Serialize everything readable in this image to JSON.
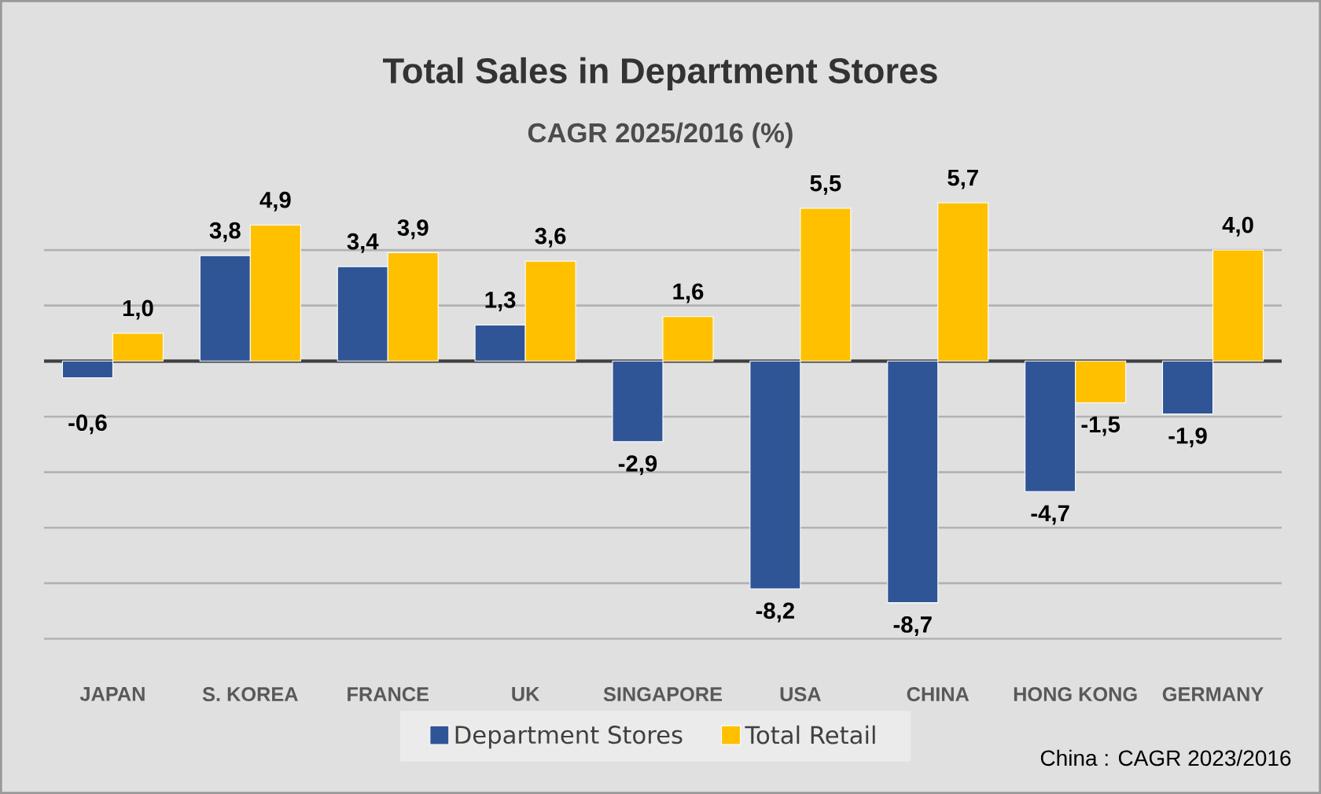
{
  "chart_data": {
    "type": "bar",
    "title": "Total Sales in Department Stores",
    "subtitle": "CAGR 2025/2016 (%)",
    "categories": [
      "JAPAN",
      "S. KOREA",
      "FRANCE",
      "UK",
      "SINGAPORE",
      "USA",
      "CHINA",
      "HONG KONG",
      "GERMANY"
    ],
    "series": [
      {
        "name": "Department Stores",
        "color": "#2f5597",
        "values": [
          -0.6,
          3.8,
          3.4,
          1.3,
          -2.9,
          -8.2,
          -8.7,
          -4.7,
          -1.9
        ],
        "value_labels": [
          "-0,6",
          "3,8",
          "3,4",
          "1,3",
          "-2,9",
          "-8,2",
          "-8,7",
          "-4,7",
          "-1,9"
        ]
      },
      {
        "name": "Total Retail",
        "color": "#ffc000",
        "values": [
          1.0,
          4.9,
          3.9,
          3.6,
          1.6,
          5.5,
          5.7,
          -1.5,
          4.0
        ],
        "value_labels": [
          "1,0",
          "4,9",
          "3,9",
          "3,6",
          "1,6",
          "5,5",
          "5,7",
          "-1,5",
          "4,0"
        ]
      }
    ],
    "tick_labels": "x",
    "grid": "y",
    "legend": "bottom",
    "annotations": [
      "China : CAGR 2023/2016"
    ]
  }
}
